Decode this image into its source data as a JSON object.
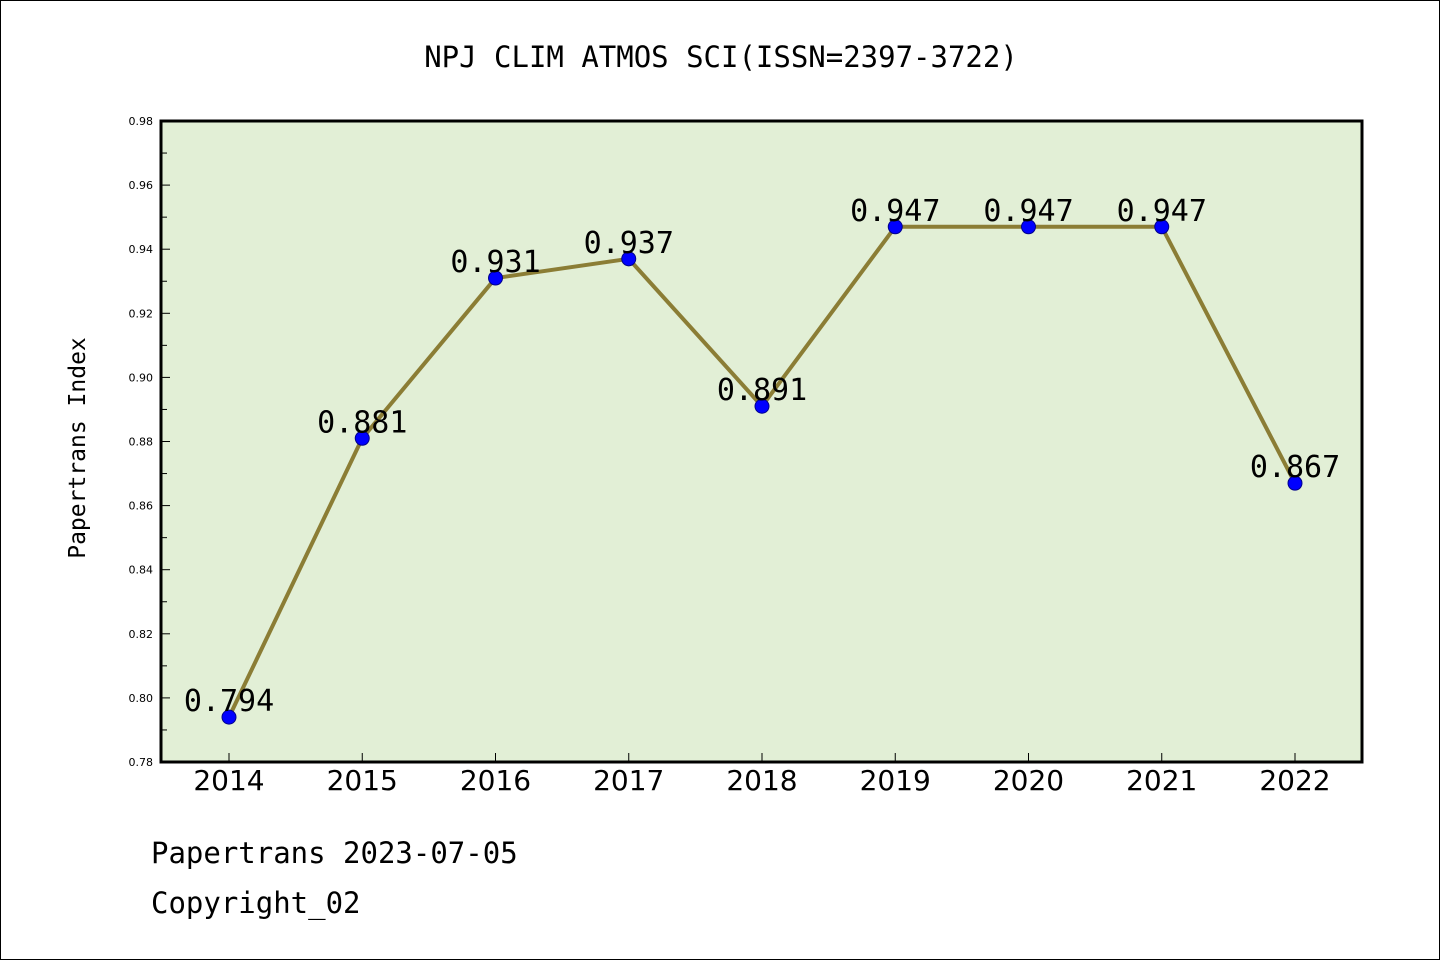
{
  "chart_data": {
    "type": "line",
    "title": "NPJ CLIM ATMOS SCI(ISSN=2397-3722)",
    "xlabel": "",
    "ylabel": "Papertrans Index",
    "categories": [
      "2014",
      "2015",
      "2016",
      "2017",
      "2018",
      "2019",
      "2020",
      "2021",
      "2022"
    ],
    "values": [
      0.794,
      0.881,
      0.931,
      0.937,
      0.891,
      0.947,
      0.947,
      0.947,
      0.867
    ],
    "data_labels": [
      "0.794",
      "0.881",
      "0.931",
      "0.937",
      "0.891",
      "0.947",
      "0.947",
      "0.947",
      "0.867"
    ],
    "ylim": [
      0.78,
      0.98
    ],
    "yticks": [
      0.78,
      0.8,
      0.82,
      0.84,
      0.86,
      0.88,
      0.9,
      0.92,
      0.94,
      0.96,
      0.98
    ],
    "ytick_labels": [
      "0.78",
      "0.80",
      "0.82",
      "0.84",
      "0.86",
      "0.88",
      "0.90",
      "0.92",
      "0.94",
      "0.96",
      "0.98"
    ],
    "grid": false,
    "colors": {
      "plot_background": "#e2efd6",
      "line": "#8b7d35",
      "marker": "#0000ff",
      "axis": "#000000"
    }
  },
  "footer": {
    "source": "Papertrans 2023-07-05",
    "copyright": "Copyright_02"
  }
}
